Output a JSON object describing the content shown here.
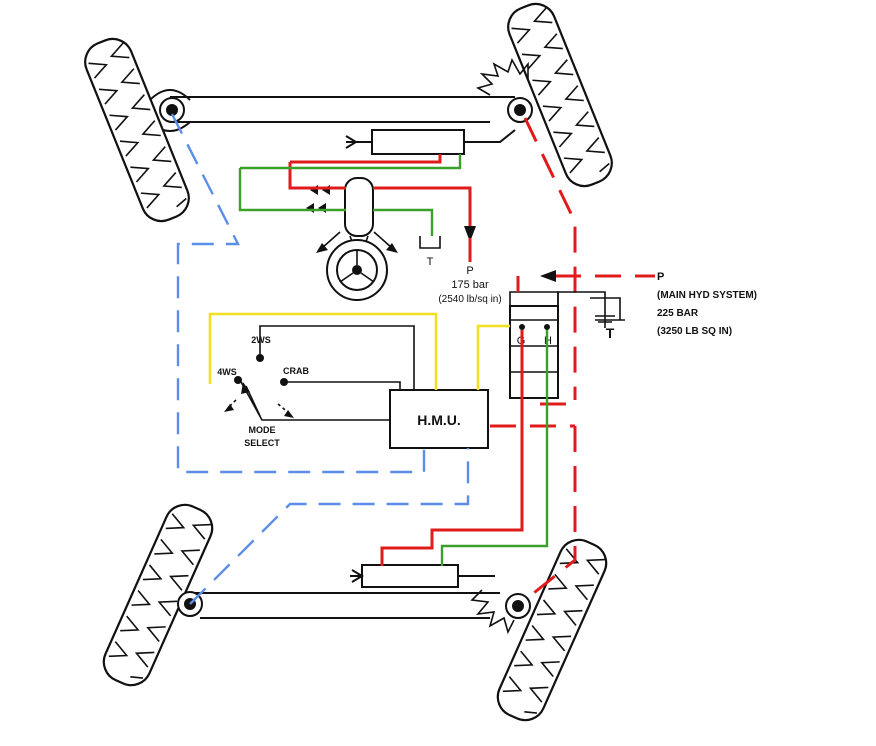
{
  "colors": {
    "pressure_line": "#e01b1b",
    "return_line": "#3aa02a",
    "electrical_line": "#f0e020",
    "steering_link": "#5b8ee8"
  },
  "labels": {
    "steering_tank": "T",
    "steering_pressure_p": "P",
    "steering_pressure_bar": "175 bar",
    "steering_pressure_psi": "(2540 lb/sq in)",
    "main_p": "P",
    "main_system": "(MAIN HYD SYSTEM)",
    "main_bar": "225 BAR",
    "main_psi": "(3250 LB SQ IN)",
    "main_tank": "T",
    "valve_g": "G",
    "valve_h": "H",
    "mode_2ws": "2WS",
    "mode_4ws": "4WS",
    "mode_crab": "CRAB",
    "mode_select_1": "MODE",
    "mode_select_2": "SELECT",
    "hmu": "H.M.U."
  }
}
